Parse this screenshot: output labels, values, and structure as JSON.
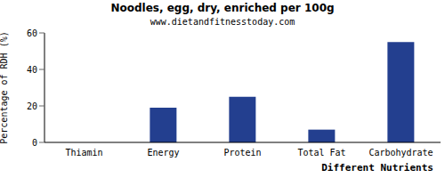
{
  "chart_data": {
    "type": "bar",
    "title": "Noodles, egg, dry, enriched per 100g",
    "subtitle": "www.dietandfitnesstoday.com",
    "x_label": "Different Nutrients",
    "y_label": "Percentage of RDH (%)",
    "categories": [
      "Thiamin",
      "Energy",
      "Protein",
      "Total Fat",
      "Carbohydrate"
    ],
    "values": [
      0,
      19,
      25,
      7,
      55
    ],
    "color": "#233f8f",
    "ylim": [
      0,
      60
    ],
    "yticks": [
      0,
      20,
      40,
      60
    ],
    "grid": false
  }
}
